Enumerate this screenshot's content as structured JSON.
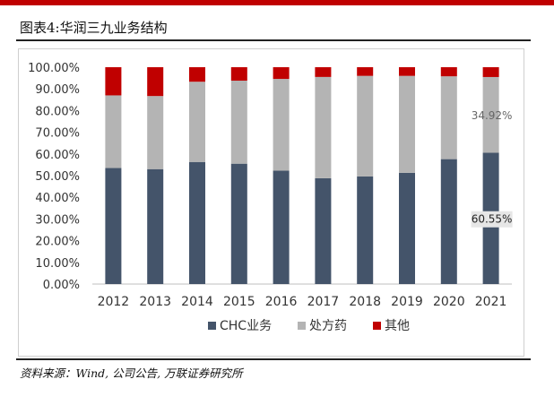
{
  "title": "图表4:华润三九业务结构",
  "source": "资料来源：Wind, 公司公告, 万联证券研究所",
  "chart_data": {
    "type": "bar",
    "stacked": true,
    "categories": [
      "2012",
      "2013",
      "2014",
      "2015",
      "2016",
      "2017",
      "2018",
      "2019",
      "2020",
      "2021"
    ],
    "series": [
      {
        "name": "CHC业务",
        "color": "#44546a",
        "values": [
          53.5,
          53.0,
          56.3,
          55.5,
          52.3,
          48.8,
          49.6,
          51.3,
          57.6,
          60.55
        ]
      },
      {
        "name": "处方药",
        "color": "#b4b4b4",
        "values": [
          33.5,
          33.7,
          37.0,
          38.3,
          42.3,
          46.7,
          46.4,
          44.7,
          38.2,
          34.92
        ]
      },
      {
        "name": "其他",
        "color": "#c00000",
        "values": [
          13.0,
          13.3,
          6.7,
          6.2,
          5.4,
          4.5,
          4.0,
          4.0,
          4.2,
          4.53
        ]
      }
    ],
    "ylim": [
      0,
      100
    ],
    "yticks": [
      "0.00%",
      "10.00%",
      "20.00%",
      "30.00%",
      "40.00%",
      "50.00%",
      "60.00%",
      "70.00%",
      "80.00%",
      "90.00%",
      "100.00%"
    ],
    "data_labels": [
      {
        "category": "2021",
        "series": "处方药",
        "text": "34.92%"
      },
      {
        "category": "2021",
        "series": "CHC业务",
        "text": "60.55%"
      }
    ],
    "legend_position": "bottom",
    "grid": false
  }
}
